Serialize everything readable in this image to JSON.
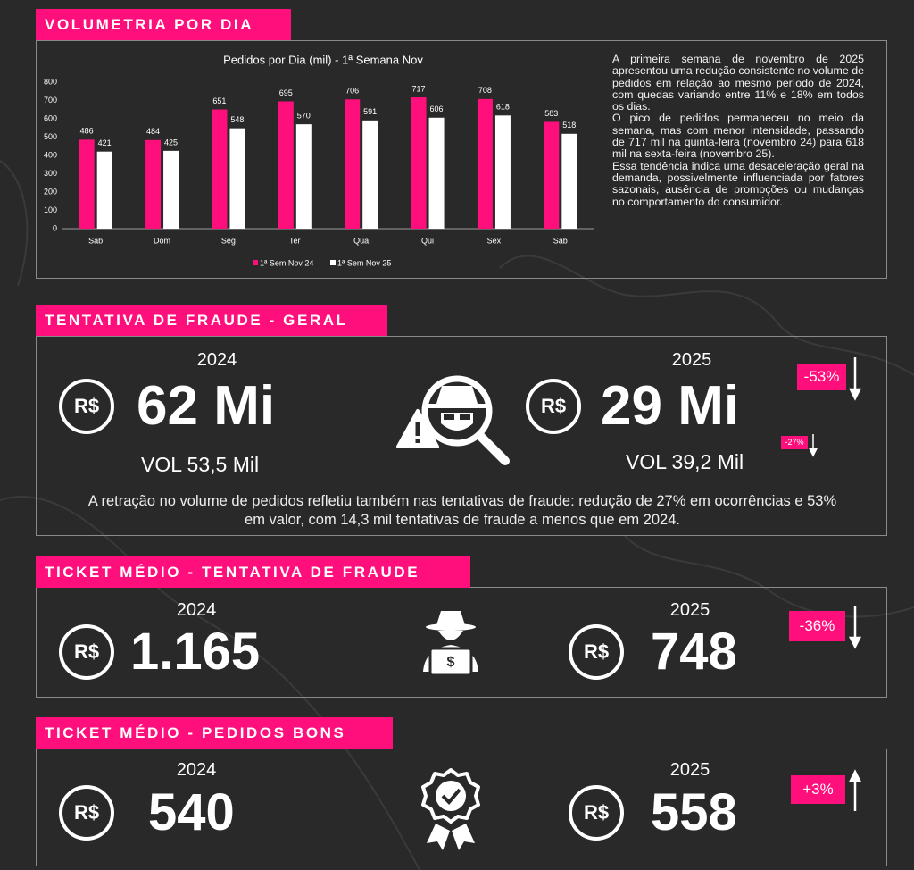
{
  "currency": "R$",
  "volumetria": {
    "heading": "VOLUMETRIA POR DIA",
    "paragraphs": [
      "A primeira semana de novembro de 2025 apresentou uma redução consistente no volume de pedidos em relação ao mesmo período de 2024, com quedas variando entre 11% e 18% em todos os dias.",
      "O pico de pedidos permaneceu no meio da semana, mas com menor intensidade, passando de 717 mil na quinta-feira (novembro 24) para 618 mil na sexta-feira (novembro 25).",
      "Essa tendência indica uma desaceleração geral na demanda, possivelmente influenciada por fatores sazonais, ausência de promoções ou mudanças no comportamento do consumidor."
    ]
  },
  "chart_data": {
    "type": "bar",
    "title": "Pedidos por Dia (mil) -  1ª Semana Nov",
    "categories": [
      "Sáb",
      "Dom",
      "Seg",
      "Ter",
      "Qua",
      "Qui",
      "Sex",
      "Sáb"
    ],
    "series": [
      {
        "name": "1ª Sem Nov 24",
        "color": "#ff0f7b",
        "values": [
          486,
          484,
          651,
          695,
          706,
          717,
          708,
          583
        ]
      },
      {
        "name": "1ª Sem Nov 25",
        "color": "#ffffff",
        "values": [
          421,
          425,
          548,
          570,
          591,
          606,
          618,
          518
        ]
      }
    ],
    "ylim": [
      0,
      800
    ],
    "yticks": [
      0,
      100,
      200,
      300,
      400,
      500,
      600,
      700,
      800
    ],
    "grid": false,
    "legend": "bottom"
  },
  "fraude_geral": {
    "heading": "TENTATIVA DE FRAUDE - GERAL",
    "year_a": "2024",
    "value_a": "62 Mi",
    "vol_a": "VOL 53,5  Mil",
    "year_b": "2025",
    "value_b": "29 Mi",
    "vol_b": "VOL 39,2 Mil",
    "change_value": "-53%",
    "change_volume": "-27%",
    "text": "A retração no volume de pedidos refletiu também nas tentativas de fraude: redução de 27% em ocorrências e 53% em valor, com 14,3 mil tentativas de fraude a menos que em 2024."
  },
  "ticket_fraude": {
    "heading": "TICKET MÉDIO - TENTATIVA DE FRAUDE",
    "year_a": "2024",
    "value_a": "1.165",
    "year_b": "2025",
    "value_b": "748",
    "change": "-36%"
  },
  "ticket_bons": {
    "heading": "TICKET MÉDIO - PEDIDOS BONS",
    "year_a": "2024",
    "value_a": "540",
    "year_b": "2025",
    "value_b": "558",
    "change": "+3%"
  }
}
